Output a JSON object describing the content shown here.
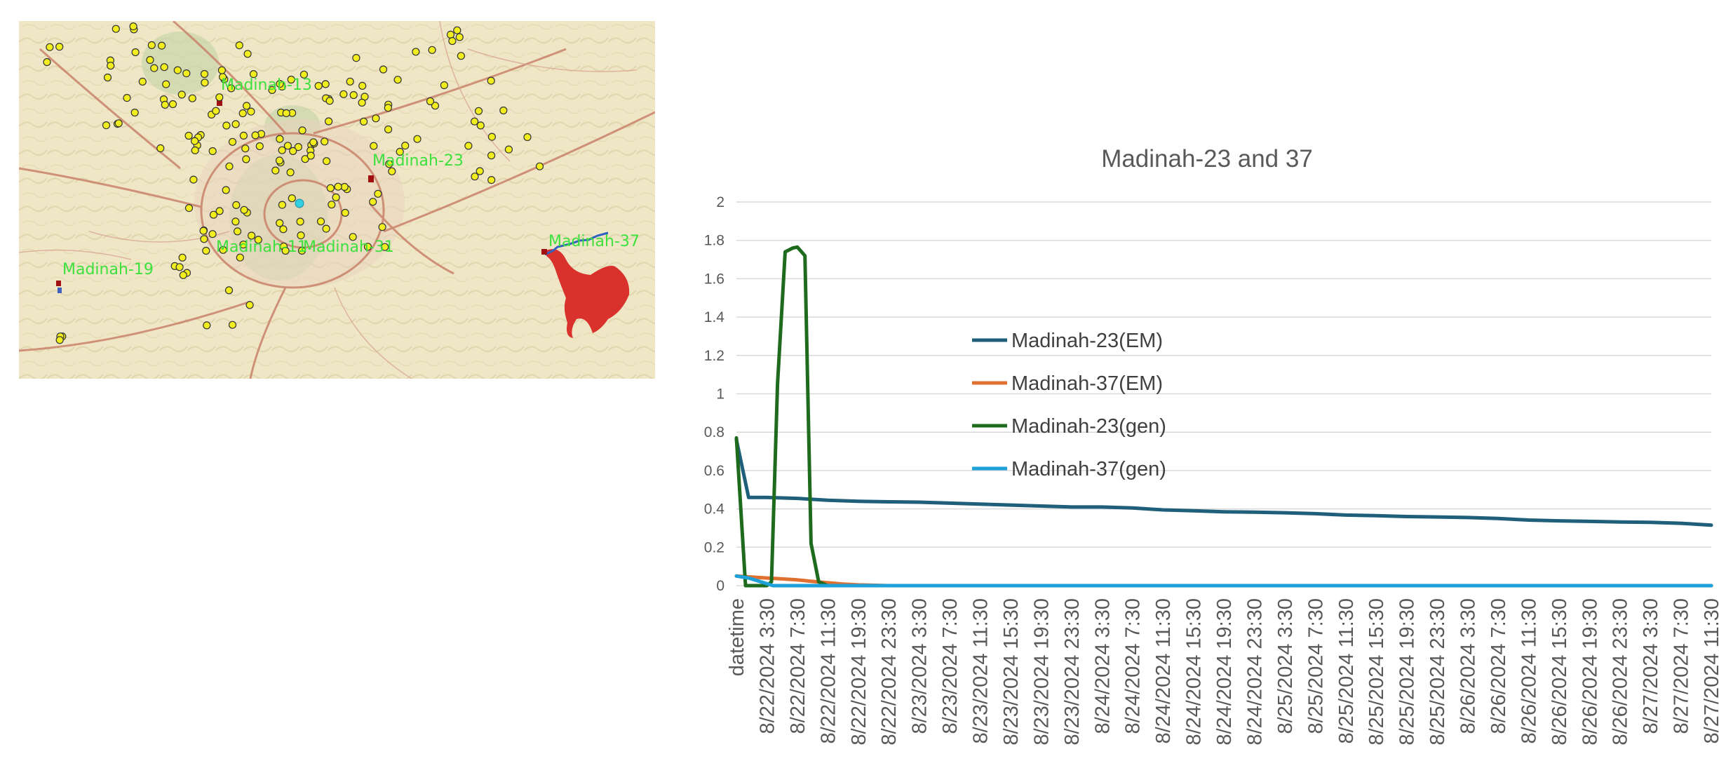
{
  "map": {
    "labels": [
      "Madinah-13",
      "Madinah-23",
      "Madinah-37",
      "Madinah-19",
      "Madinah-11",
      "Madinah-31"
    ]
  },
  "chart_data": {
    "type": "line",
    "title": "Madinah-23 and 37",
    "xlabel": "",
    "ylabel": "",
    "ylim": [
      0,
      2
    ],
    "yticks": [
      0,
      0.2,
      0.4,
      0.6,
      0.8,
      1,
      1.2,
      1.4,
      1.6,
      1.8,
      2
    ],
    "grid": true,
    "legend_position": "center-left",
    "x_tick_labels": [
      "datetime",
      "8/22/2024 3:30",
      "8/22/2024 7:30",
      "8/22/2024 11:30",
      "8/22/2024 19:30",
      "8/22/2024 23:30",
      "8/23/2024 3:30",
      "8/23/2024 7:30",
      "8/23/2024 11:30",
      "8/23/2024 15:30",
      "8/23/2024 19:30",
      "8/23/2024 23:30",
      "8/24/2024 3:30",
      "8/24/2024 7:30",
      "8/24/2024 11:30",
      "8/24/2024 15:30",
      "8/24/2024 19:30",
      "8/24/2024 23:30",
      "8/25/2024 3:30",
      "8/25/2024 7:30",
      "8/25/2024 11:30",
      "8/25/2024 15:30",
      "8/25/2024 19:30",
      "8/25/2024 23:30",
      "8/26/2024 3:30",
      "8/26/2024 7:30",
      "8/26/2024 11:30",
      "8/26/2024 15:30",
      "8/26/2024 19:30",
      "8/26/2024 23:30",
      "8/27/2024 3:30",
      "8/27/2024 7:30",
      "8/27/2024 11:30"
    ],
    "series": [
      {
        "name": "Madinah-23(EM)",
        "color": "#1f5f7a",
        "points": [
          [
            0,
            0.76
          ],
          [
            0.4,
            0.46
          ],
          [
            1,
            0.46
          ],
          [
            2,
            0.455
          ],
          [
            3,
            0.445
          ],
          [
            4,
            0.44
          ],
          [
            5,
            0.437
          ],
          [
            6,
            0.435
          ],
          [
            7,
            0.43
          ],
          [
            8,
            0.425
          ],
          [
            9,
            0.42
          ],
          [
            10,
            0.415
          ],
          [
            11,
            0.41
          ],
          [
            12,
            0.41
          ],
          [
            13,
            0.405
          ],
          [
            14,
            0.395
          ],
          [
            15,
            0.39
          ],
          [
            16,
            0.385
          ],
          [
            17,
            0.383
          ],
          [
            18,
            0.38
          ],
          [
            19,
            0.375
          ],
          [
            20,
            0.368
          ],
          [
            21,
            0.365
          ],
          [
            22,
            0.36
          ],
          [
            23,
            0.358
          ],
          [
            24,
            0.355
          ],
          [
            25,
            0.35
          ],
          [
            26,
            0.342
          ],
          [
            27,
            0.338
          ],
          [
            28,
            0.335
          ],
          [
            29,
            0.332
          ],
          [
            30,
            0.33
          ],
          [
            31,
            0.325
          ],
          [
            32,
            0.315
          ]
        ]
      },
      {
        "name": "Madinah-37(EM)",
        "color": "#e07030",
        "points": [
          [
            0,
            0.05
          ],
          [
            0.5,
            0.045
          ],
          [
            1,
            0.04
          ],
          [
            1.5,
            0.035
          ],
          [
            2,
            0.03
          ],
          [
            2.5,
            0.022
          ],
          [
            3,
            0.015
          ],
          [
            3.5,
            0.008
          ],
          [
            4,
            0.004
          ],
          [
            5,
            0
          ],
          [
            32,
            0
          ]
        ]
      },
      {
        "name": "Madinah-23(gen)",
        "color": "#1e6b1e",
        "points": [
          [
            0,
            0.77
          ],
          [
            0.3,
            0
          ],
          [
            1,
            0
          ],
          [
            1.15,
            0.02
          ],
          [
            1.35,
            1.05
          ],
          [
            1.6,
            1.74
          ],
          [
            1.85,
            1.76
          ],
          [
            2.0,
            1.765
          ],
          [
            2.25,
            1.72
          ],
          [
            2.45,
            0.22
          ],
          [
            2.7,
            0.02
          ],
          [
            3.0,
            0
          ],
          [
            32,
            0
          ]
        ]
      },
      {
        "name": "Madinah-37(gen)",
        "color": "#1ea0d8",
        "points": [
          [
            0,
            0.05
          ],
          [
            0.4,
            0.04
          ],
          [
            0.8,
            0.02
          ],
          [
            1.2,
            0
          ],
          [
            32,
            0
          ]
        ]
      }
    ]
  }
}
